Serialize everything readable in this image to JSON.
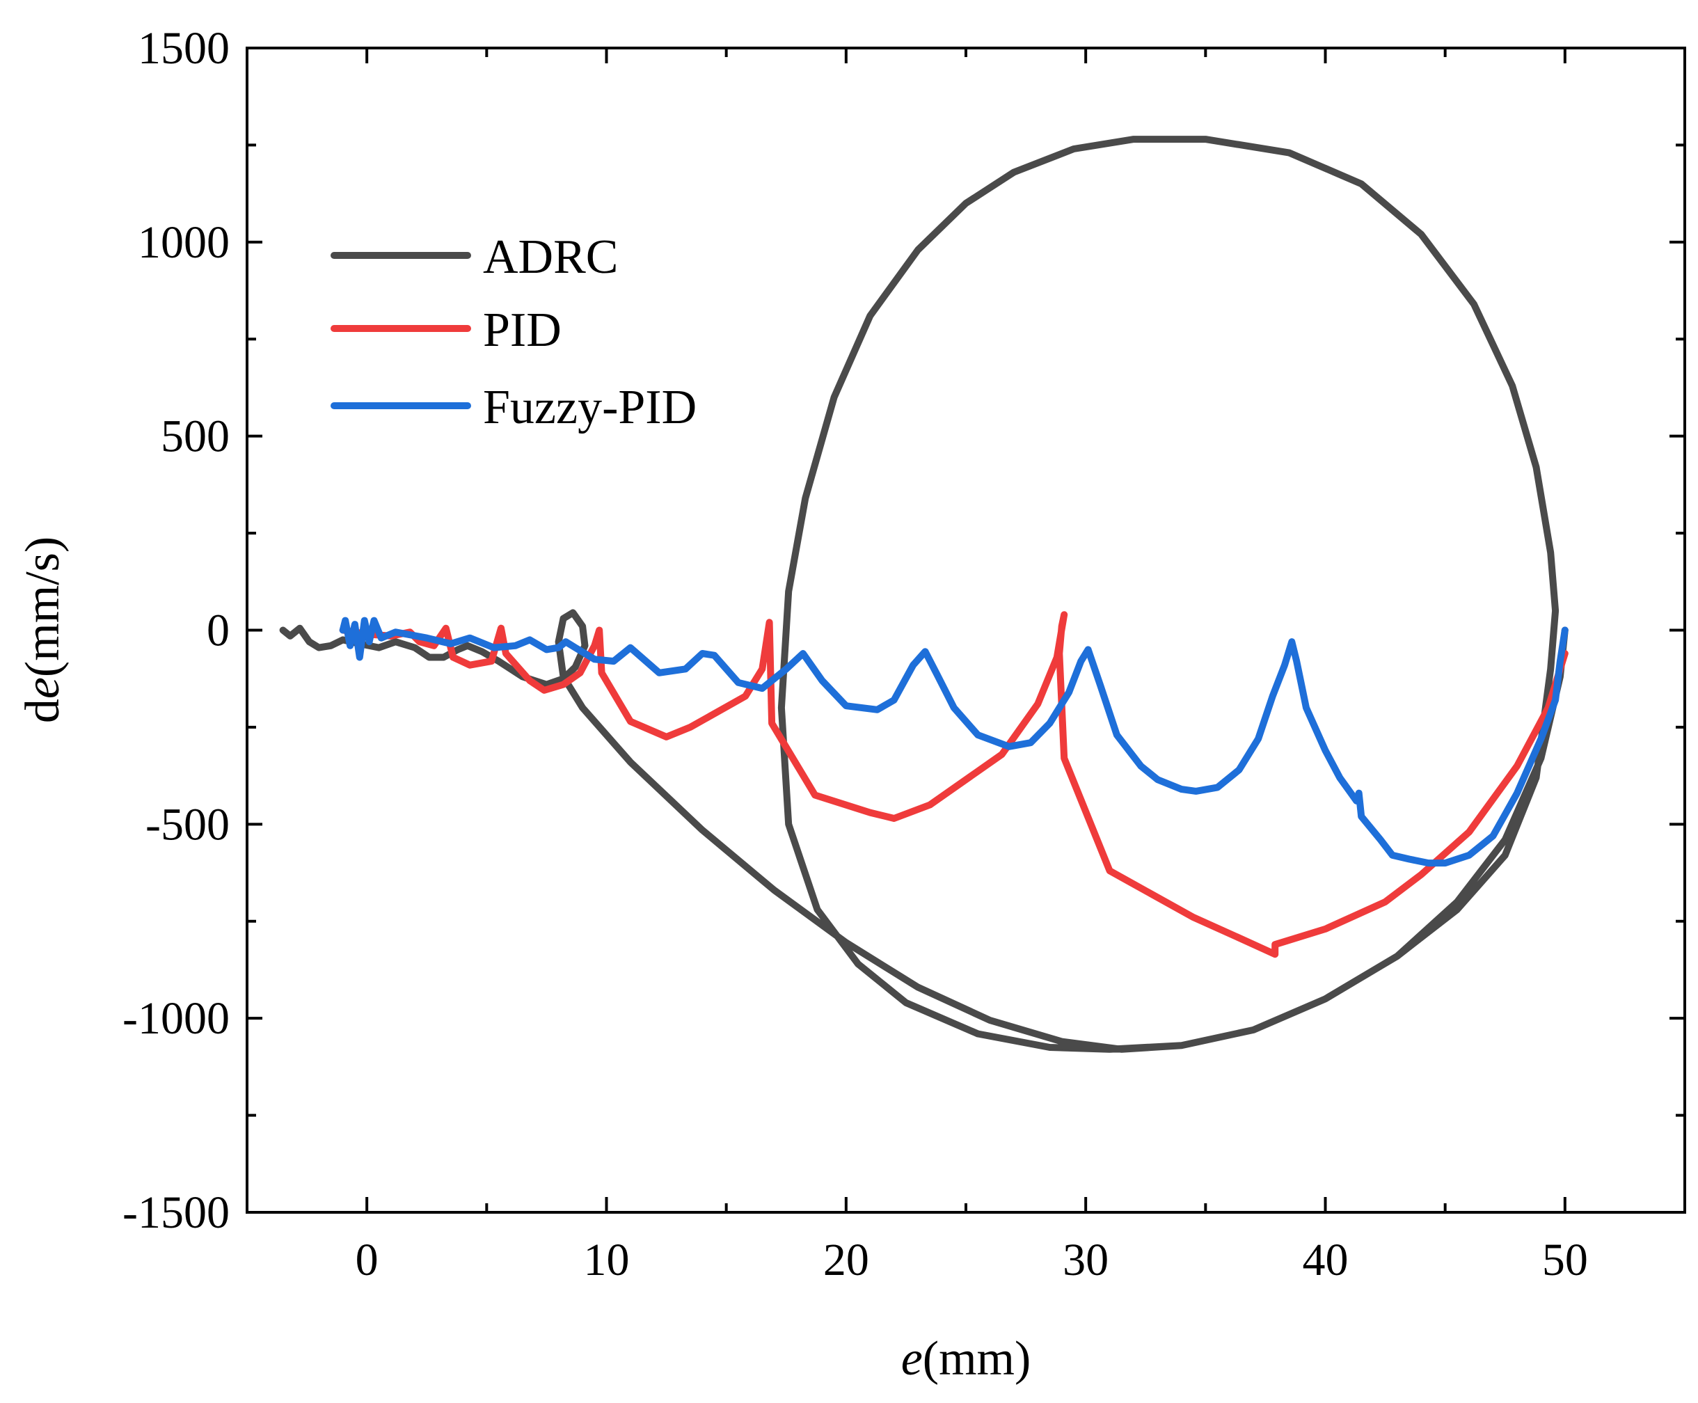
{
  "chart_data": {
    "type": "line",
    "title": "",
    "xlabel": {
      "italic": "e",
      "rest": "(mm)"
    },
    "ylabel": {
      "prefix": "d",
      "italic": "e",
      "rest": "(mm/s)"
    },
    "xlim": [
      -5,
      55
    ],
    "ylim": [
      -1500,
      1500
    ],
    "x_ticks": [
      0,
      10,
      20,
      30,
      40,
      50
    ],
    "y_ticks": [
      1500,
      1000,
      500,
      0,
      -500,
      -1000,
      -1500
    ],
    "x_tick_labels": [
      "0",
      "10",
      "20",
      "30",
      "40",
      "50"
    ],
    "y_tick_labels": [
      "1500",
      "1000",
      "500",
      "0",
      "-500",
      "-1000",
      "-1500"
    ],
    "legend_position": "upper-left",
    "series": [
      {
        "name": "ADRC",
        "color": "#4a4a4a",
        "points": [
          [
            -3.5,
            0
          ],
          [
            -3.2,
            -15
          ],
          [
            -2.8,
            5
          ],
          [
            -2.4,
            -30
          ],
          [
            -2.0,
            -45
          ],
          [
            -1.5,
            -40
          ],
          [
            -1.0,
            -25
          ],
          [
            -0.3,
            -35
          ],
          [
            0.5,
            -45
          ],
          [
            1.2,
            -30
          ],
          [
            2.0,
            -45
          ],
          [
            2.6,
            -70
          ],
          [
            3.2,
            -70
          ],
          [
            3.8,
            -50
          ],
          [
            4.2,
            -40
          ],
          [
            4.8,
            -55
          ],
          [
            5.5,
            -80
          ],
          [
            6.5,
            -120
          ],
          [
            7.5,
            -140
          ],
          [
            8.2,
            -125
          ],
          [
            8.7,
            -95
          ],
          [
            9.1,
            -40
          ],
          [
            9.0,
            10
          ],
          [
            8.6,
            45
          ],
          [
            8.2,
            30
          ],
          [
            8.0,
            -30
          ],
          [
            8.2,
            -120
          ],
          [
            9.0,
            -200
          ],
          [
            11,
            -340
          ],
          [
            14,
            -515
          ],
          [
            17,
            -670
          ],
          [
            20,
            -805
          ],
          [
            23,
            -920
          ],
          [
            26,
            -1005
          ],
          [
            29,
            -1060
          ],
          [
            31.5,
            -1080
          ],
          [
            34,
            -1070
          ],
          [
            37,
            -1030
          ],
          [
            40,
            -950
          ],
          [
            43,
            -840
          ],
          [
            45.5,
            -720
          ],
          [
            47.5,
            -580
          ],
          [
            48.8,
            -380
          ],
          [
            49.4,
            -100
          ],
          [
            49.6,
            50
          ],
          [
            49.4,
            200
          ],
          [
            48.8,
            420
          ],
          [
            47.8,
            630
          ],
          [
            46.2,
            840
          ],
          [
            44,
            1020
          ],
          [
            41.5,
            1150
          ],
          [
            38.5,
            1230
          ],
          [
            35,
            1265
          ],
          [
            32,
            1265
          ],
          [
            29.5,
            1240
          ],
          [
            27,
            1180
          ],
          [
            25,
            1100
          ],
          [
            23,
            980
          ],
          [
            21,
            810
          ],
          [
            19.5,
            600
          ],
          [
            18.3,
            340
          ],
          [
            17.6,
            100
          ],
          [
            17.3,
            -200
          ],
          [
            17.6,
            -500
          ],
          [
            18.8,
            -720
          ],
          [
            20.5,
            -860
          ],
          [
            22.5,
            -960
          ],
          [
            25.5,
            -1040
          ],
          [
            28.5,
            -1075
          ],
          [
            31,
            -1080
          ],
          [
            34,
            -1070
          ],
          [
            37,
            -1030
          ],
          [
            40,
            -950
          ],
          [
            43,
            -840
          ],
          [
            45.5,
            -700
          ],
          [
            47.5,
            -540
          ],
          [
            49,
            -330
          ],
          [
            49.8,
            -120
          ],
          [
            50,
            0
          ]
        ]
      },
      {
        "name": "PID",
        "color": "#ef3b3b",
        "points": [
          [
            -1,
            0
          ],
          [
            0,
            -10
          ],
          [
            1.0,
            -15
          ],
          [
            1.8,
            -5
          ],
          [
            2.2,
            -30
          ],
          [
            2.8,
            -40
          ],
          [
            3.3,
            5
          ],
          [
            3.6,
            -70
          ],
          [
            4.3,
            -90
          ],
          [
            5.2,
            -80
          ],
          [
            5.6,
            5
          ],
          [
            5.8,
            -60
          ],
          [
            6.8,
            -130
          ],
          [
            7.4,
            -155
          ],
          [
            8.2,
            -140
          ],
          [
            8.9,
            -110
          ],
          [
            9.5,
            -40
          ],
          [
            9.7,
            0
          ],
          [
            9.8,
            -110
          ],
          [
            11,
            -235
          ],
          [
            12.5,
            -275
          ],
          [
            13.5,
            -250
          ],
          [
            15.8,
            -170
          ],
          [
            16.5,
            -100
          ],
          [
            16.8,
            20
          ],
          [
            16.9,
            -240
          ],
          [
            18.7,
            -425
          ],
          [
            21,
            -470
          ],
          [
            22,
            -485
          ],
          [
            23.5,
            -450
          ],
          [
            26.5,
            -320
          ],
          [
            28.0,
            -190
          ],
          [
            28.8,
            -70
          ],
          [
            29.1,
            40
          ],
          [
            29.0,
            10
          ],
          [
            28.9,
            -60
          ],
          [
            29.1,
            -330
          ],
          [
            31.0,
            -620
          ],
          [
            34.5,
            -740
          ],
          [
            36.3,
            -790
          ],
          [
            37.9,
            -835
          ],
          [
            37.9,
            -810
          ],
          [
            40.0,
            -770
          ],
          [
            42.5,
            -700
          ],
          [
            44.0,
            -630
          ],
          [
            46.0,
            -520
          ],
          [
            48.0,
            -350
          ],
          [
            49.3,
            -200
          ],
          [
            50.0,
            -60
          ]
        ]
      },
      {
        "name": "Fuzzy-PID",
        "color": "#1e6fd9",
        "points": [
          [
            -1.0,
            0
          ],
          [
            -0.9,
            25
          ],
          [
            -0.7,
            -40
          ],
          [
            -0.5,
            15
          ],
          [
            -0.3,
            -70
          ],
          [
            -0.1,
            25
          ],
          [
            0.1,
            -30
          ],
          [
            0.3,
            25
          ],
          [
            0.6,
            -20
          ],
          [
            1.2,
            -5
          ],
          [
            2.5,
            -20
          ],
          [
            3.5,
            -35
          ],
          [
            4.3,
            -20
          ],
          [
            5.3,
            -45
          ],
          [
            6.2,
            -40
          ],
          [
            6.8,
            -25
          ],
          [
            7.5,
            -50
          ],
          [
            8.0,
            -45
          ],
          [
            8.3,
            -30
          ],
          [
            8.7,
            -45
          ],
          [
            9.5,
            -75
          ],
          [
            10.3,
            -80
          ],
          [
            11.0,
            -45
          ],
          [
            12.2,
            -110
          ],
          [
            13.3,
            -100
          ],
          [
            14.0,
            -60
          ],
          [
            14.5,
            -65
          ],
          [
            15.5,
            -135
          ],
          [
            16.5,
            -150
          ],
          [
            17.5,
            -100
          ],
          [
            18.2,
            -60
          ],
          [
            19.0,
            -130
          ],
          [
            20.0,
            -195
          ],
          [
            21.3,
            -205
          ],
          [
            22.0,
            -180
          ],
          [
            22.8,
            -90
          ],
          [
            23.3,
            -55
          ],
          [
            23.8,
            -115
          ],
          [
            24.5,
            -200
          ],
          [
            25.5,
            -270
          ],
          [
            26.8,
            -300
          ],
          [
            27.7,
            -290
          ],
          [
            28.5,
            -240
          ],
          [
            29.3,
            -160
          ],
          [
            29.8,
            -80
          ],
          [
            30.1,
            -50
          ],
          [
            30.6,
            -140
          ],
          [
            31.3,
            -270
          ],
          [
            32.3,
            -350
          ],
          [
            33.0,
            -385
          ],
          [
            34.0,
            -410
          ],
          [
            34.6,
            -415
          ],
          [
            35.5,
            -405
          ],
          [
            36.4,
            -360
          ],
          [
            37.2,
            -280
          ],
          [
            37.8,
            -170
          ],
          [
            38.3,
            -90
          ],
          [
            38.6,
            -30
          ],
          [
            38.8,
            -80
          ],
          [
            39.2,
            -200
          ],
          [
            40.0,
            -310
          ],
          [
            40.6,
            -380
          ],
          [
            41.3,
            -440
          ],
          [
            41.4,
            -420
          ],
          [
            41.5,
            -480
          ],
          [
            42.3,
            -540
          ],
          [
            42.8,
            -580
          ],
          [
            43.5,
            -590
          ],
          [
            44.3,
            -600
          ],
          [
            45.0,
            -600
          ],
          [
            46.0,
            -580
          ],
          [
            47.0,
            -530
          ],
          [
            48.0,
            -420
          ],
          [
            49.0,
            -280
          ],
          [
            49.6,
            -180
          ],
          [
            49.8,
            -80
          ],
          [
            50.0,
            0
          ]
        ]
      }
    ]
  }
}
